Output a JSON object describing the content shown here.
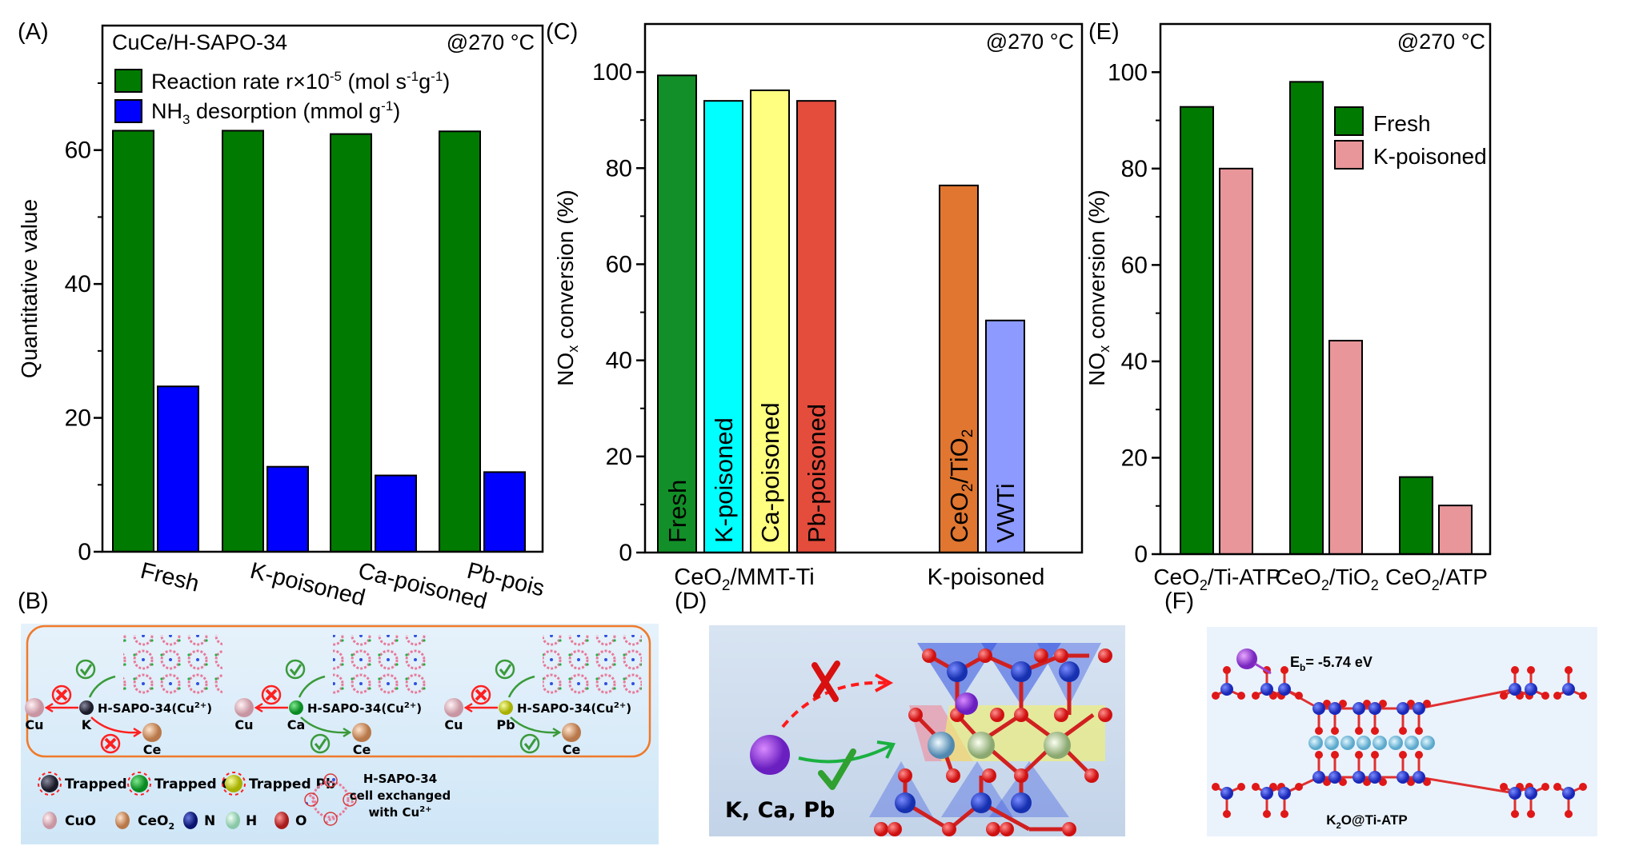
{
  "panel_labels": {
    "a": "(A)",
    "b": "(B)",
    "c": "(C)",
    "d": "(D)",
    "e": "(E)",
    "f": "(F)"
  },
  "chart_data": [
    {
      "id": "A",
      "type": "bar",
      "title": "CuCe/H-SAPO-34",
      "annotation": "@270 °C",
      "xlabel": "",
      "ylabel": "Quantitative value",
      "ylim": [
        0,
        78.6
      ],
      "yticks": [
        0,
        20,
        40,
        60
      ],
      "ytick_labels": [
        "0",
        "20",
        "40",
        "60"
      ],
      "minor_ticks": [
        10,
        30,
        50,
        70
      ],
      "categories": [
        "Fresh",
        "K-poisoned",
        "Ca-poisoned",
        "Pb-poisoned"
      ],
      "legend_position": "top-left",
      "series": [
        {
          "name": "Reaction rate r×10",
          "name_sup": "-5",
          "name_rest": " (mol s",
          "name_sup2": "-1",
          "name_rest2": "g",
          "name_sup3": "-1",
          "name_end": ")",
          "color": "#007a00",
          "values": [
            62.9,
            62.9,
            62.4,
            62.8
          ]
        },
        {
          "name": "NH",
          "name_sub": "3",
          "name_rest": " desorption (mmol g",
          "name_sup": "-1",
          "name_end": ")",
          "color": "#0000ff",
          "values": [
            24.7,
            12.7,
            11.4,
            11.9
          ]
        }
      ]
    },
    {
      "id": "C",
      "type": "bar",
      "annotation": "@270 °C",
      "ylabel": "NOx conversion (%)",
      "ylabel_parts": {
        "pre": "NO",
        "sub": "x",
        "post": " conversion (%)"
      },
      "ylim": [
        0,
        110
      ],
      "yticks": [
        0,
        20,
        40,
        60,
        80,
        100
      ],
      "ytick_labels": [
        "0",
        "20",
        "40",
        "60",
        "80",
        "100"
      ],
      "minor_ticks": [
        10,
        30,
        50,
        70,
        90
      ],
      "groups": [
        {
          "label_pre": "CeO",
          "label_sub": "2",
          "label_post": "/MMT-Ti"
        },
        {
          "label_pre": "K-poisoned",
          "label_sub": "",
          "label_post": ""
        }
      ],
      "bars": [
        {
          "label": "Fresh",
          "group": 0,
          "value": 99.3,
          "color": "#128f28"
        },
        {
          "label": "K-poisoned",
          "group": 0,
          "value": 94.0,
          "color": "#00ffff"
        },
        {
          "label": "Ca-poisoned",
          "group": 0,
          "value": 96.2,
          "color": "#ffff80"
        },
        {
          "label": "Pb-poisoned",
          "group": 0,
          "value": 94.0,
          "color": "#e44c3c"
        },
        {
          "label": "CeO2/TiO2",
          "label_parts": [
            "CeO",
            "2",
            "/TiO",
            "2"
          ],
          "group": 1,
          "value": 76.4,
          "color": "#e07630"
        },
        {
          "label": "VWTi",
          "group": 1,
          "value": 48.3,
          "color": "#8d9aff"
        }
      ]
    },
    {
      "id": "E",
      "type": "bar",
      "annotation": "@270 °C",
      "ylabel": "NOx conversion (%)",
      "ylabel_parts": {
        "pre": "NO",
        "sub": "x",
        "post": " conversion (%)"
      },
      "ylim": [
        0,
        110
      ],
      "yticks": [
        0,
        20,
        40,
        60,
        80,
        100
      ],
      "ytick_labels": [
        "0",
        "20",
        "40",
        "60",
        "80",
        "100"
      ],
      "minor_ticks": [
        10,
        30,
        50,
        70,
        90
      ],
      "legend_position": "upper-right",
      "categories": [
        {
          "pre": "CeO",
          "sub": "2",
          "post": "/Ti-ATP",
          "sub2": ""
        },
        {
          "pre": "CeO",
          "sub": "2",
          "post": "/TiO",
          "sub2": "2"
        },
        {
          "pre": "CeO",
          "sub": "2",
          "post": "/ATP",
          "sub2": ""
        }
      ],
      "series": [
        {
          "name": "Fresh",
          "color": "#007a00",
          "values": [
            92.8,
            98.0,
            16.0
          ]
        },
        {
          "name": "K-poisoned",
          "color": "#e8969a",
          "values": [
            80.0,
            44.3,
            10.1
          ]
        }
      ]
    }
  ],
  "schematic_b": {
    "groups": [
      {
        "poison": "K",
        "cu": "Cu",
        "ce": "Ce",
        "framework": "H-SAPO-34(Cu",
        "framework_sup": "2+",
        "framework_end": ")",
        "to_cu": "blocked",
        "to_framework": "allowed",
        "to_ce": "blocked"
      },
      {
        "poison": "Ca",
        "cu": "Cu",
        "ce": "Ce",
        "framework": "H-SAPO-34(Cu",
        "framework_sup": "2+",
        "framework_end": ")",
        "to_cu": "blocked",
        "to_framework": "allowed",
        "to_ce": "allowed"
      },
      {
        "poison": "Pb",
        "cu": "Cu",
        "ce": "Ce",
        "framework": "H-SAPO-34(Cu",
        "framework_sup": "2+",
        "framework_end": ")",
        "to_cu": "blocked",
        "to_framework": "allowed",
        "to_ce": "allowed"
      }
    ],
    "legend": {
      "trapped_k": "Trapped K",
      "trapped_ca": "Trapped Ca",
      "trapped_pb": "Trapped Pb",
      "cuo": "CuO",
      "ceo2_pre": "CeO",
      "ceo2_sub": "2",
      "n": "N",
      "h": "H",
      "o": "O",
      "cell_line1": "H-SAPO-34",
      "cell_line2": "cell exchanged",
      "cell_line3": "with Cu",
      "cell_sup": "2+"
    },
    "colors": {
      "k": "#2a2a3a",
      "ca": "#11a530",
      "pb": "#d6e01a",
      "cu": "#f0c4cc",
      "ce": "#e6aa7c",
      "n": "#1c2a9a",
      "h": "#b6e6cf",
      "o": "#d83a3a",
      "border": "#f07a2a",
      "check": "#3a9a3a",
      "cross": "#ff2020"
    }
  },
  "schematic_d": {
    "ions_label": "K, Ca, Pb",
    "blocked_path": "blocked",
    "allowed_path": "allowed"
  },
  "schematic_f": {
    "energy_pre": "E",
    "energy_sub": "b",
    "energy_post": "= -5.74 eV",
    "structure_pre": "K",
    "structure_sub": "2",
    "structure_post": "O@Ti-ATP"
  }
}
